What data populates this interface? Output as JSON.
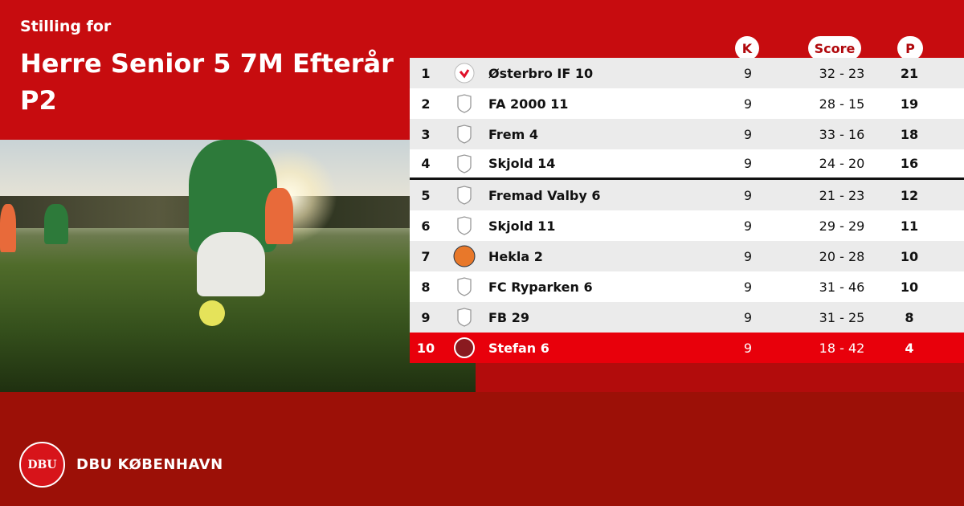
{
  "header": {
    "subtitle": "Stilling for",
    "title": "Herre Senior 5 7M Efterår P2"
  },
  "columns": {
    "k": "K",
    "score": "Score",
    "p": "P"
  },
  "rows": [
    {
      "pos": "1",
      "team": "Østerbro IF 10",
      "k": "9",
      "score": "32 - 23",
      "p": "21",
      "logo": "osterbro-crest"
    },
    {
      "pos": "2",
      "team": "FA 2000 11",
      "k": "9",
      "score": "28 - 15",
      "p": "19",
      "logo": "default-shield"
    },
    {
      "pos": "3",
      "team": "Frem 4",
      "k": "9",
      "score": "33 - 16",
      "p": "18",
      "logo": "default-shield"
    },
    {
      "pos": "4",
      "team": "Skjold 14",
      "k": "9",
      "score": "24 - 20",
      "p": "16",
      "logo": "default-shield"
    },
    {
      "pos": "5",
      "team": "Fremad Valby 6",
      "k": "9",
      "score": "21 - 23",
      "p": "12",
      "logo": "default-shield"
    },
    {
      "pos": "6",
      "team": "Skjold 11",
      "k": "9",
      "score": "29 - 29",
      "p": "11",
      "logo": "default-shield"
    },
    {
      "pos": "7",
      "team": "Hekla 2",
      "k": "9",
      "score": "20 - 28",
      "p": "10",
      "logo": "hekla-crest"
    },
    {
      "pos": "8",
      "team": "FC Ryparken 6",
      "k": "9",
      "score": "31 - 46",
      "p": "10",
      "logo": "default-shield"
    },
    {
      "pos": "9",
      "team": "FB 29",
      "k": "9",
      "score": "31 - 25",
      "p": "8",
      "logo": "default-shield"
    },
    {
      "pos": "10",
      "team": "Stefan 6",
      "k": "9",
      "score": "18 - 42",
      "p": "4",
      "logo": "stefan-crest",
      "highlight": true
    }
  ],
  "footer": {
    "brand": "DBU KØBENHAVN",
    "logo_text": "DBU"
  },
  "colors": {
    "primary": "#c70c0f",
    "footer": "#9c1007",
    "highlight": "#e8000b"
  }
}
